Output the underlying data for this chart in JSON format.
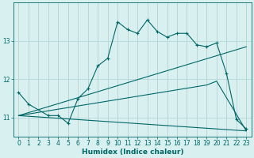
{
  "xlabel": "Humidex (Indice chaleur)",
  "bg_color": "#d8f0f0",
  "line_color": "#006666",
  "grid_color": "#b8dada",
  "xlim": [
    -0.5,
    23.5
  ],
  "ylim": [
    10.5,
    14.0
  ],
  "xticks": [
    0,
    1,
    2,
    3,
    4,
    5,
    6,
    7,
    8,
    9,
    10,
    11,
    12,
    13,
    14,
    15,
    16,
    17,
    18,
    19,
    20,
    21,
    22,
    23
  ],
  "yticks": [
    11,
    12,
    13
  ],
  "line1_x": [
    0,
    1,
    3,
    4,
    5,
    6,
    7,
    8,
    9,
    10,
    11,
    12,
    13,
    14,
    15,
    16,
    17,
    18,
    19,
    20,
    21,
    22,
    23
  ],
  "line1_y": [
    11.65,
    11.35,
    11.05,
    11.05,
    10.85,
    11.5,
    11.75,
    12.35,
    12.55,
    13.5,
    13.3,
    13.2,
    13.55,
    13.25,
    13.1,
    13.2,
    13.2,
    12.9,
    12.85,
    12.95,
    12.15,
    10.95,
    10.7
  ],
  "line2_x": [
    0,
    23
  ],
  "line2_y": [
    11.05,
    12.85
  ],
  "line3_x": [
    0,
    19,
    20,
    23
  ],
  "line3_y": [
    11.05,
    11.85,
    11.95,
    10.65
  ],
  "line4_x": [
    0,
    23
  ],
  "line4_y": [
    11.05,
    10.65
  ],
  "tick_fontsize": 5.5,
  "xlabel_fontsize": 6.5
}
